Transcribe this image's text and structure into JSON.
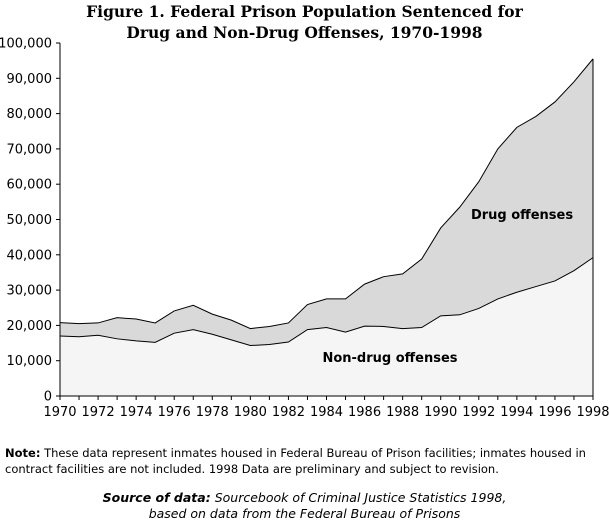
{
  "title_line1": "Figure 1. Federal Prison Population Sentenced for",
  "title_line2": "Drug and Non-Drug Offenses, 1970-1998",
  "note_label": "Note:",
  "note_text": " These data represent inmates housed in Federal Bureau of Prison facilities; inmates housed in contract facilities are not included. 1998 Data are preliminary and subject to revision.",
  "source_label": "Source of data:",
  "source_line1": " Sourcebook of Criminal Justice Statistics 1998,",
  "source_line2": "based on data from the Federal Bureau of Prisons",
  "chart_data": {
    "type": "area",
    "stacked": true,
    "title": "Figure 1. Federal Prison Population Sentenced for Drug and Non-Drug Offenses, 1970-1998",
    "xlabel": "",
    "ylabel": "",
    "x": [
      1970,
      1971,
      1972,
      1973,
      1974,
      1975,
      1976,
      1977,
      1978,
      1979,
      1980,
      1981,
      1982,
      1983,
      1984,
      1985,
      1986,
      1987,
      1988,
      1989,
      1990,
      1991,
      1992,
      1993,
      1994,
      1995,
      1996,
      1997,
      1998
    ],
    "xlim": [
      1970,
      1998
    ],
    "ylim": [
      0,
      100000
    ],
    "x_ticks": [
      "1970",
      "1972",
      "1974",
      "1976",
      "1978",
      "1980",
      "1982",
      "1984",
      "1986",
      "1988",
      "1990",
      "1992",
      "1994",
      "1996",
      "1998"
    ],
    "y_ticks": [
      "0",
      "10,000",
      "20,000",
      "30,000",
      "40,000",
      "50,000",
      "60,000",
      "70,000",
      "80,000",
      "90,000",
      "100,000"
    ],
    "grid": false,
    "legend": "none",
    "series": [
      {
        "name": "Non-drug offenses",
        "color": "#f5f5f5",
        "values": [
          17000,
          16800,
          17200,
          16200,
          15600,
          15200,
          17800,
          18800,
          17500,
          15900,
          14300,
          14600,
          15300,
          18800,
          19400,
          18100,
          19800,
          19700,
          19100,
          19400,
          22700,
          23000,
          24800,
          27500,
          29400,
          31000,
          32600,
          35500,
          39200
        ]
      },
      {
        "name": "Drug offenses",
        "color": "#d9d9d9",
        "values": [
          3800,
          3700,
          3500,
          6000,
          6200,
          5500,
          6300,
          6900,
          5700,
          5600,
          4800,
          5100,
          5400,
          7100,
          8100,
          9400,
          11900,
          14100,
          15500,
          19400,
          24900,
          30500,
          35900,
          42500,
          46700,
          48200,
          50700,
          53500,
          56300
        ]
      }
    ],
    "totals": [
      20800,
      20500,
      20700,
      22200,
      21800,
      20700,
      24100,
      25700,
      23200,
      21500,
      19100,
      19700,
      20700,
      25900,
      27500,
      27500,
      31700,
      33800,
      34600,
      38800,
      47600,
      53500,
      60700,
      70000,
      76100,
      79200,
      83300,
      89000,
      95500
    ],
    "annotations": [
      "Drug offenses",
      "Non-drug offenses"
    ]
  }
}
